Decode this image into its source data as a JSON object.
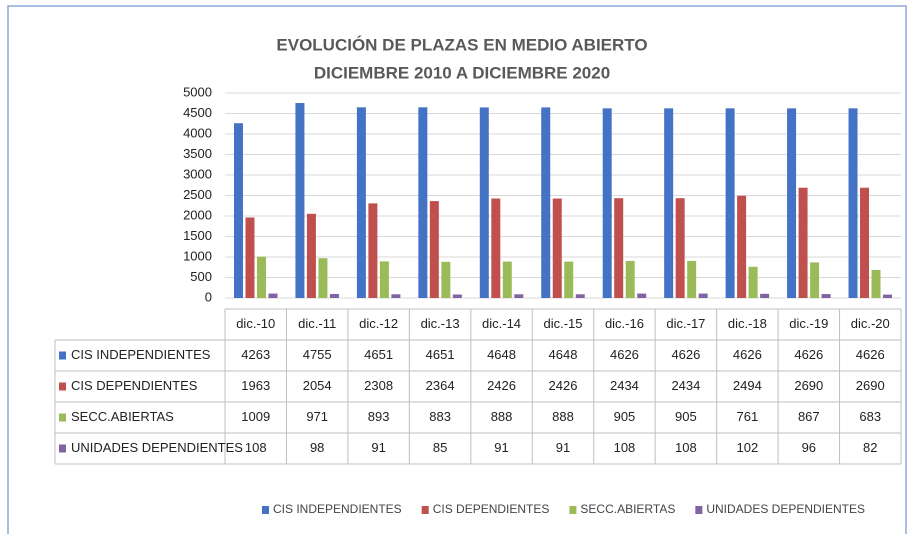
{
  "chart_data": {
    "type": "bar",
    "title": "EVOLUCIÓN DE PLAZAS EN MEDIO ABIERTO",
    "subtitle": "DICIEMBRE 2010 A DICIEMBRE 2020",
    "categories": [
      "dic.-10",
      "dic.-11",
      "dic.-12",
      "dic.-13",
      "dic.-14",
      "dic.-15",
      "dic.-16",
      "dic.-17",
      "dic.-18",
      "dic.-19",
      "dic.-20"
    ],
    "series": [
      {
        "name": "CIS INDEPENDIENTES",
        "color": "#4472c4",
        "values": [
          4263,
          4755,
          4651,
          4651,
          4648,
          4648,
          4626,
          4626,
          4626,
          4626,
          4626
        ]
      },
      {
        "name": "CIS DEPENDIENTES",
        "color": "#c0504d",
        "values": [
          1963,
          2054,
          2308,
          2364,
          2426,
          2426,
          2434,
          2434,
          2494,
          2690,
          2690
        ]
      },
      {
        "name": "SECC.ABIERTAS",
        "color": "#9bbb59",
        "values": [
          1009,
          971,
          893,
          883,
          888,
          888,
          905,
          905,
          761,
          867,
          683
        ]
      },
      {
        "name": "UNIDADES DEPENDIENTES",
        "color": "#8064a2",
        "values": [
          108,
          98,
          91,
          85,
          91,
          91,
          108,
          108,
          102,
          96,
          82
        ]
      }
    ],
    "ylim": [
      0,
      5000
    ],
    "yticks": [
      0,
      500,
      1000,
      1500,
      2000,
      2500,
      3000,
      3500,
      4000,
      4500,
      5000
    ],
    "grid": true,
    "legend": "bottom"
  }
}
